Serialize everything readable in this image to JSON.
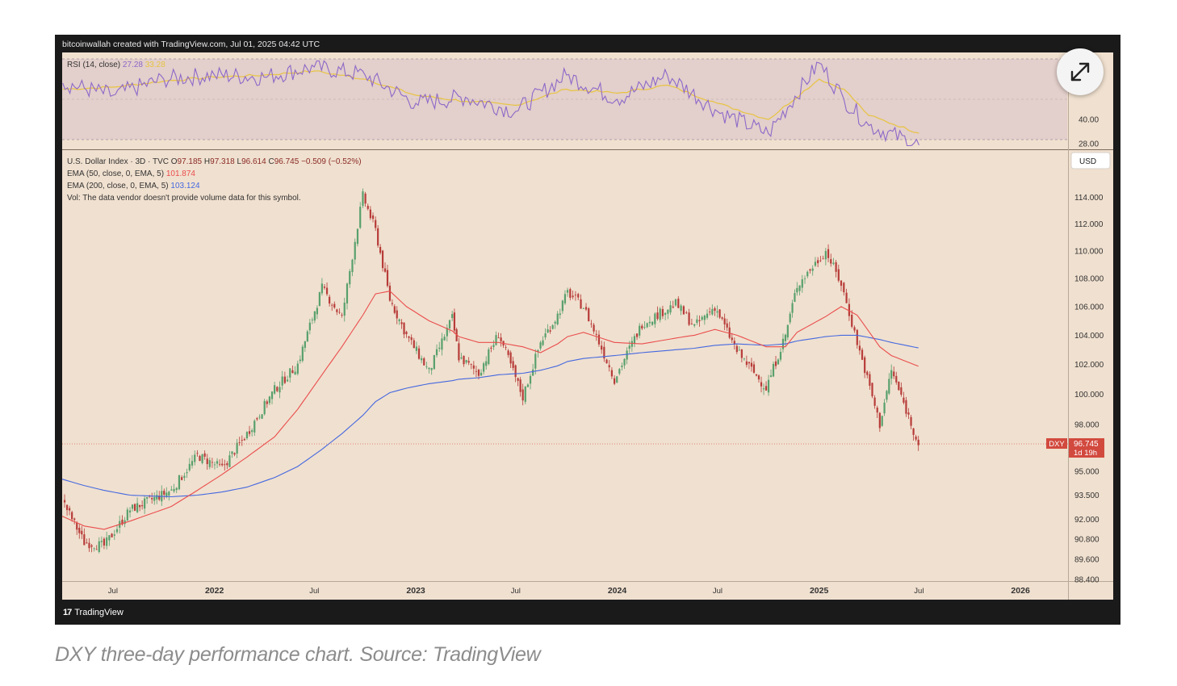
{
  "credit": "bitcoinwallah created with TradingView.com, Jul 01, 2025 04:42 UTC",
  "branding": {
    "name": "TradingView",
    "glyph": "17"
  },
  "caption": "DXY three-day performance chart. Source: TradingView",
  "expand_button": {
    "icon": "expand-arrows-icon"
  },
  "colors": {
    "background": "#f0e0cf",
    "frame": "#1a1a1a",
    "rsi_band": "#e3cfcb",
    "up_candle": "#58a06c",
    "down_candle": "#b73c39",
    "ema50": "#ea4d4d",
    "ema200": "#4468e0",
    "rsi_line": "#8d68c9",
    "rsi_ma": "#e7c441",
    "price_label_bg": "#d2493e"
  },
  "chart_data": [
    {
      "type": "line",
      "pane": "RSI",
      "legend": {
        "name": "RSI (14, close)",
        "value": "27.28",
        "ma_value": "33.28"
      },
      "ylim": [
        26,
        70
      ],
      "band": [
        30,
        70
      ],
      "y_ticks": [
        "40.00",
        "28.00"
      ],
      "x": [
        "2021-04-01",
        "2021-07-01",
        "2021-10-01",
        "2022-01-01",
        "2022-04-01",
        "2022-07-01",
        "2022-10-01",
        "2023-01-01",
        "2023-04-01",
        "2023-07-01",
        "2023-10-01",
        "2024-01-01",
        "2024-04-01",
        "2024-07-01",
        "2024-10-01",
        "2025-01-01",
        "2025-02-15",
        "2025-04-01",
        "2025-07-01"
      ],
      "series": [
        {
          "name": "RSI",
          "values": [
            58,
            52,
            60,
            62,
            61,
            66,
            62,
            48,
            51,
            44,
            62,
            50,
            62,
            44,
            33,
            68,
            50,
            37,
            27.3
          ]
        },
        {
          "name": "MA",
          "values": [
            55,
            56,
            59,
            61,
            62,
            64,
            60,
            52,
            49,
            47,
            55,
            53,
            57,
            48,
            40,
            60,
            55,
            42,
            33.3
          ]
        }
      ]
    },
    {
      "type": "line",
      "pane": "Price",
      "title": "U.S. Dollar Index · 3D · TVC",
      "ohlc": {
        "O": "97.185",
        "H": "97.318",
        "L": "96.614",
        "C": "96.745",
        "change": "−0.509 (−0.52%)"
      },
      "legend": [
        {
          "name": "EMA (50, close, 0, EMA, 5)",
          "value": "101.874"
        },
        {
          "name": "EMA (200, close, 0, EMA, 5)",
          "value": "103.124"
        }
      ],
      "note": "Vol: The data vendor doesn't provide volume data for this symbol.",
      "currency": "USD",
      "last_price": {
        "symbol": "DXY",
        "value": "96.745",
        "countdown": "1d 19h"
      },
      "y_log_scale": true,
      "ylim": [
        88.4,
        116
      ],
      "y_ticks": [
        "114.000",
        "112.000",
        "110.000",
        "108.000",
        "106.000",
        "104.000",
        "102.000",
        "100.000",
        "98.000",
        "95.000",
        "93.500",
        "92.000",
        "90.800",
        "89.600",
        "88.400"
      ],
      "x_tick_labels": [
        {
          "label": "Jul",
          "date": "2021-07-01"
        },
        {
          "label": "2022",
          "date": "2022-01-01"
        },
        {
          "label": "Jul",
          "date": "2022-07-01"
        },
        {
          "label": "2023",
          "date": "2023-01-01"
        },
        {
          "label": "Jul",
          "date": "2023-07-01"
        },
        {
          "label": "2024",
          "date": "2024-01-01"
        },
        {
          "label": "Jul",
          "date": "2024-07-01"
        },
        {
          "label": "2025",
          "date": "2025-01-01"
        },
        {
          "label": "Jul",
          "date": "2025-07-01"
        },
        {
          "label": "2026",
          "date": "2026-01-01"
        }
      ],
      "x": [
        "2021-03-31",
        "2021-05-10",
        "2021-06-15",
        "2021-08-01",
        "2021-10-15",
        "2021-12-01",
        "2022-01-15",
        "2022-03-01",
        "2022-04-20",
        "2022-06-01",
        "2022-07-15",
        "2022-08-20",
        "2022-09-27",
        "2022-10-20",
        "2022-11-15",
        "2022-12-15",
        "2023-01-25",
        "2023-03-08",
        "2023-03-20",
        "2023-04-25",
        "2023-05-31",
        "2023-07-14",
        "2023-08-15",
        "2023-09-15",
        "2023-10-03",
        "2023-11-01",
        "2023-12-27",
        "2024-02-15",
        "2024-04-16",
        "2024-05-20",
        "2024-06-26",
        "2024-08-05",
        "2024-09-27",
        "2024-11-01",
        "2024-11-22",
        "2025-01-13",
        "2025-02-10",
        "2025-03-11",
        "2025-04-21",
        "2025-05-12",
        "2025-06-30"
      ],
      "series": [
        {
          "name": "DXY",
          "values": [
            93.2,
            90.6,
            90.4,
            92.6,
            93.8,
            96.0,
            95.2,
            97.4,
            100.3,
            102.0,
            107.3,
            105.2,
            114.1,
            111.5,
            106.5,
            104.0,
            101.5,
            105.2,
            102.5,
            101.4,
            104.1,
            99.8,
            103.5,
            105.4,
            107.0,
            106.0,
            101.0,
            104.8,
            106.2,
            104.6,
            106.0,
            102.9,
            100.4,
            104.0,
            107.5,
            110.0,
            107.6,
            103.5,
            98.0,
            101.6,
            96.745
          ]
        },
        {
          "name": "EMA 50",
          "values": [
            92.2,
            91.6,
            91.4,
            91.9,
            92.8,
            93.8,
            94.8,
            95.9,
            97.2,
            99.0,
            101.3,
            103.2,
            105.4,
            106.9,
            107.1,
            106.0,
            105.0,
            104.3,
            103.9,
            103.5,
            103.5,
            103.2,
            102.8,
            103.4,
            103.9,
            104.2,
            103.5,
            103.4,
            103.8,
            104.0,
            104.4,
            104.0,
            103.2,
            103.2,
            104.2,
            105.3,
            106.0,
            105.4,
            103.2,
            102.6,
            101.874
          ]
        },
        {
          "name": "EMA 200",
          "values": [
            94.5,
            94.1,
            93.8,
            93.5,
            93.4,
            93.5,
            93.7,
            94.0,
            94.6,
            95.3,
            96.4,
            97.4,
            98.6,
            99.5,
            100.1,
            100.4,
            100.7,
            100.9,
            101.0,
            101.1,
            101.3,
            101.4,
            101.6,
            101.9,
            102.2,
            102.4,
            102.6,
            102.8,
            103.0,
            103.1,
            103.3,
            103.4,
            103.3,
            103.4,
            103.6,
            103.9,
            104.0,
            104.0,
            103.7,
            103.5,
            103.124
          ]
        }
      ]
    }
  ]
}
